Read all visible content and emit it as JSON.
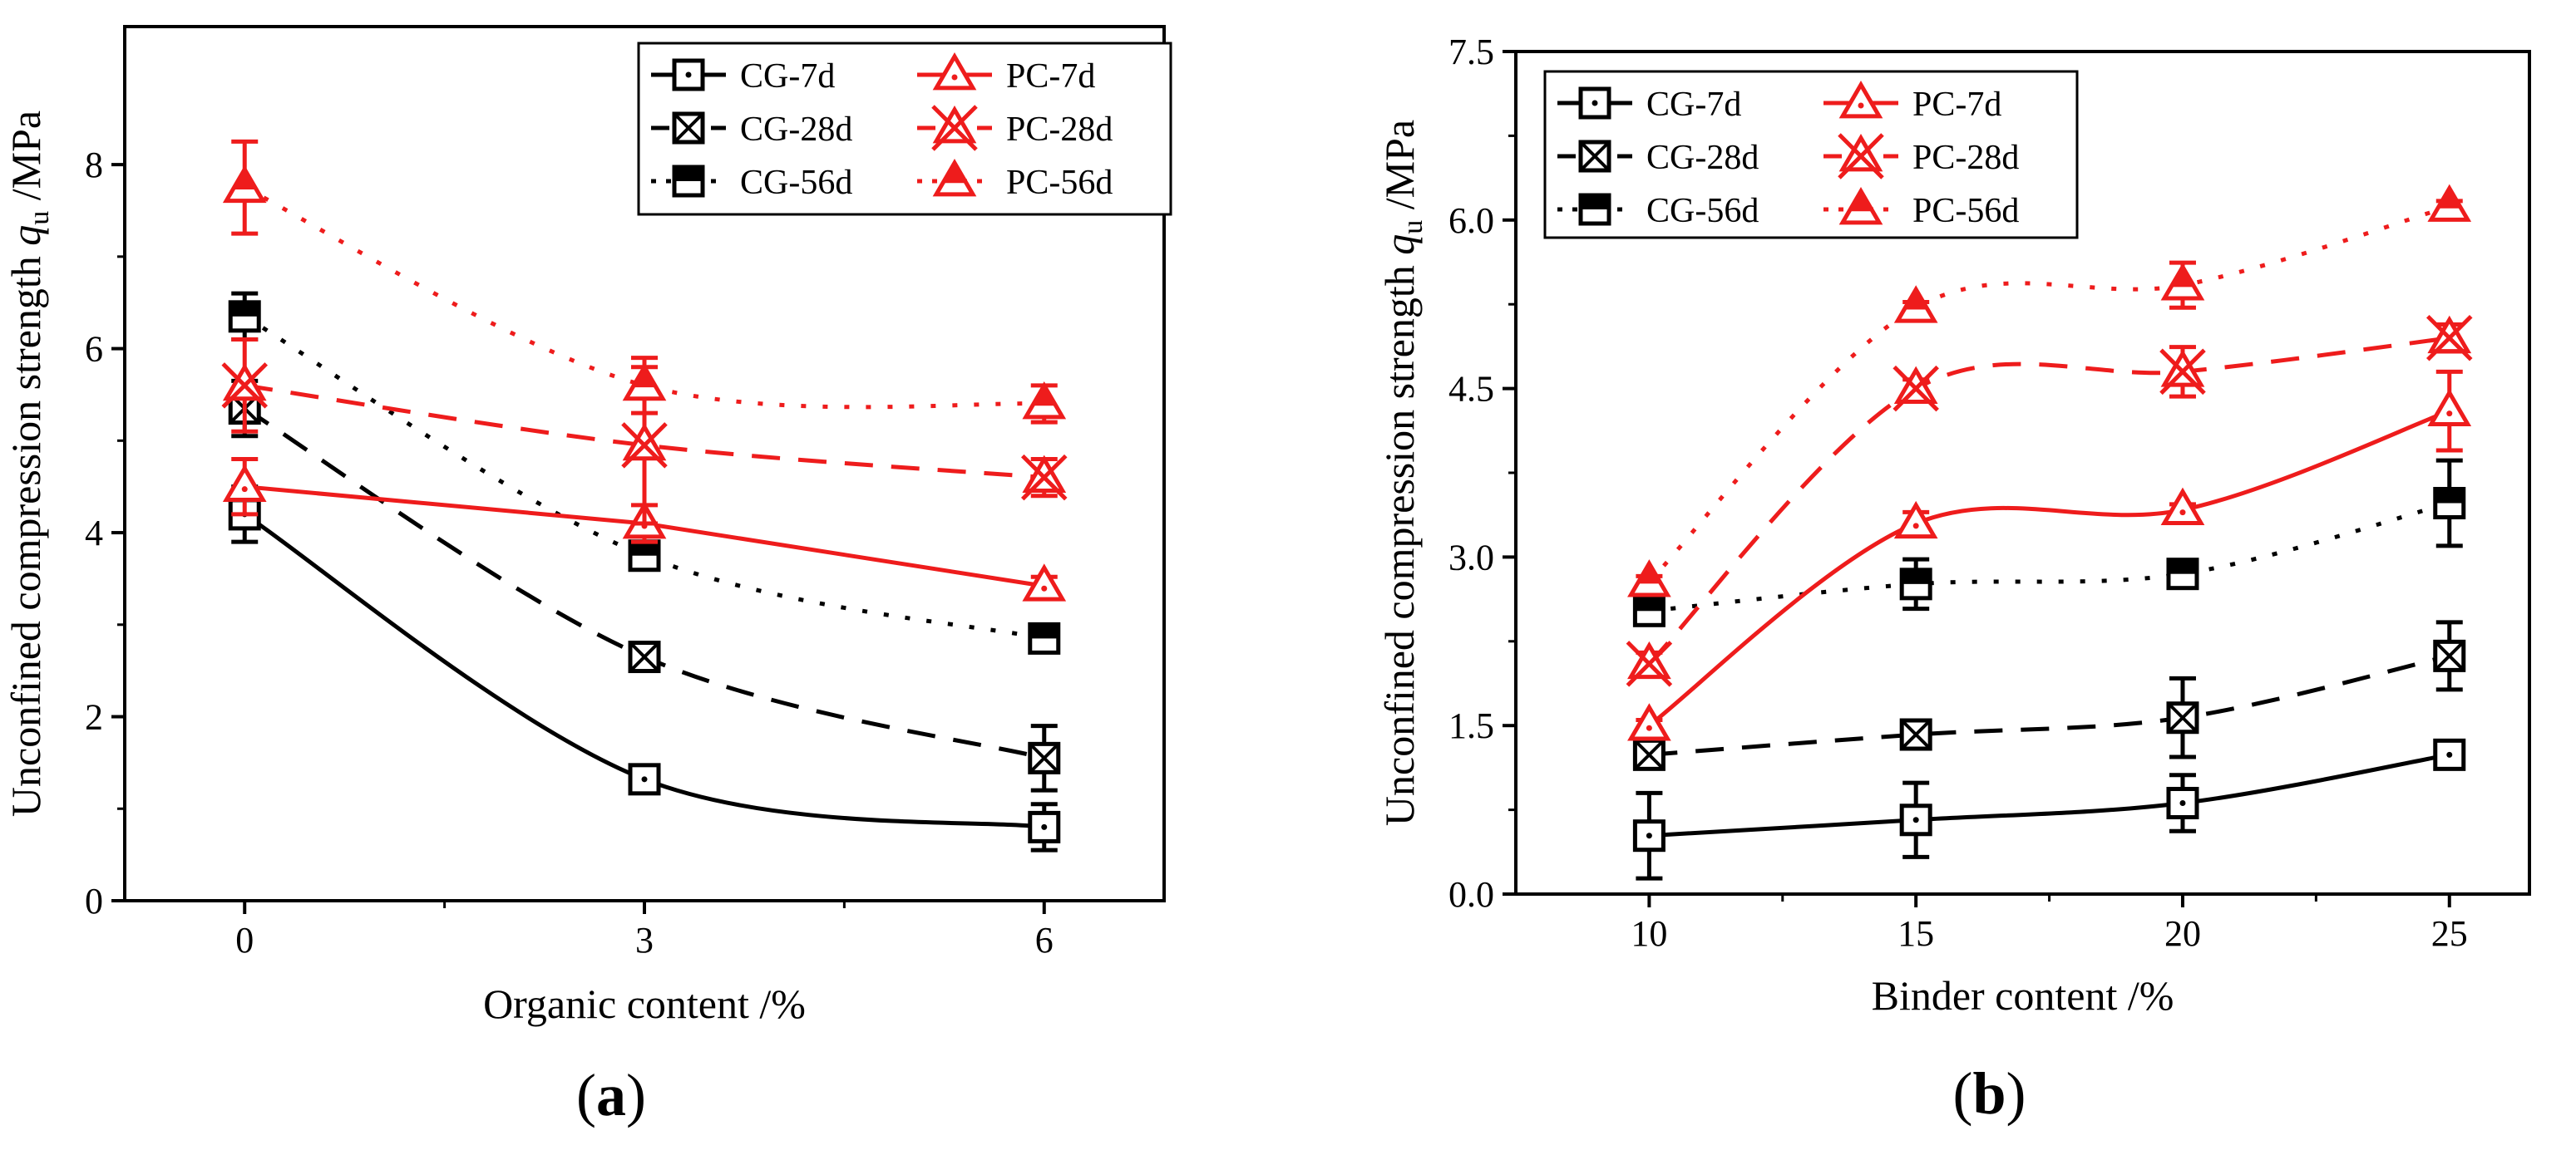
{
  "colors": {
    "black": "#000000",
    "red": "#ee1c1c"
  },
  "chart_data": [
    {
      "panel_label_open": "(",
      "panel_label_letter": "a",
      "panel_label_close": ")",
      "type": "line",
      "xlabel": "Organic content /%",
      "ylabel_main": "Unconfined compression strength ",
      "ylabel_var": "q",
      "ylabel_sub": "u",
      "ylabel_unit": " /MPa",
      "xlim": [
        -0.9,
        6.9
      ],
      "ylim": [
        0,
        9.5
      ],
      "x_ticks": [
        0,
        3,
        6
      ],
      "x_tick_labels": [
        "0",
        "3",
        "6"
      ],
      "y_ticks": [
        0,
        2,
        4,
        6,
        8
      ],
      "y_tick_labels": [
        "0",
        "2",
        "4",
        "6",
        "8"
      ],
      "legend_position": "top-right",
      "series": [
        {
          "name": "CG-7d",
          "x": [
            0,
            3,
            6
          ],
          "values": [
            4.2,
            1.32,
            0.8
          ],
          "errors": [
            0.3,
            0.05,
            0.25
          ],
          "color": "#000000",
          "marker": "square-dot",
          "line": "solid"
        },
        {
          "name": "CG-28d",
          "x": [
            0,
            3,
            6
          ],
          "values": [
            5.35,
            2.65,
            1.55
          ],
          "errors": [
            0.3,
            0.1,
            0.35
          ],
          "color": "#000000",
          "marker": "square-x",
          "line": "dash"
        },
        {
          "name": "CG-56d",
          "x": [
            0,
            3,
            6
          ],
          "values": [
            6.35,
            3.75,
            2.85
          ],
          "errors": [
            0.25,
            0.15,
            0.1
          ],
          "color": "#000000",
          "marker": "square-half",
          "line": "dot"
        },
        {
          "name": "PC-7d",
          "x": [
            0,
            3,
            6
          ],
          "values": [
            4.5,
            4.1,
            3.42
          ],
          "errors": [
            0.3,
            0.2,
            0.1
          ],
          "color": "#ee1c1c",
          "marker": "triangle-open",
          "line": "solid"
        },
        {
          "name": "PC-28d",
          "x": [
            0,
            3,
            6
          ],
          "values": [
            5.6,
            4.95,
            4.6
          ],
          "errors": [
            0.5,
            0.85,
            0.2
          ],
          "color": "#ee1c1c",
          "marker": "triangle-x",
          "line": "dash"
        },
        {
          "name": "PC-56d",
          "x": [
            0,
            3,
            6
          ],
          "values": [
            7.75,
            5.6,
            5.4
          ],
          "errors": [
            0.5,
            0.3,
            0.2
          ],
          "color": "#ee1c1c",
          "marker": "triangle-half",
          "line": "dot"
        }
      ]
    },
    {
      "panel_label_open": "(",
      "panel_label_letter": "b",
      "panel_label_close": ")",
      "type": "line",
      "xlabel": "Binder content /%",
      "ylabel_main": "Unconfined compression strength ",
      "ylabel_var": "q",
      "ylabel_sub": "u",
      "ylabel_unit": " /MPa",
      "xlim": [
        7.5,
        26.5
      ],
      "ylim": [
        0,
        7.5
      ],
      "x_ticks": [
        10,
        15,
        20,
        25
      ],
      "x_tick_labels": [
        "10",
        "15",
        "20",
        "25"
      ],
      "y_ticks": [
        0,
        1.5,
        3,
        4.5,
        6,
        7.5
      ],
      "y_tick_labels": [
        "0.0",
        "1.5",
        "3.0",
        "4.5",
        "6.0",
        "7.5"
      ],
      "legend_position": "top-left",
      "series": [
        {
          "name": "CG-7d",
          "x": [
            10,
            15,
            20,
            25
          ],
          "values": [
            0.52,
            0.66,
            0.81,
            1.24
          ],
          "errors": [
            0.38,
            0.33,
            0.25,
            0.08
          ],
          "color": "#000000",
          "marker": "square-dot",
          "line": "solid"
        },
        {
          "name": "CG-28d",
          "x": [
            10,
            15,
            20,
            25
          ],
          "values": [
            1.24,
            1.42,
            1.57,
            2.12
          ],
          "errors": [
            0.08,
            0.1,
            0.35,
            0.3
          ],
          "color": "#000000",
          "marker": "square-x",
          "line": "dash"
        },
        {
          "name": "CG-56d",
          "x": [
            10,
            15,
            20,
            25
          ],
          "values": [
            2.52,
            2.76,
            2.85,
            3.48
          ],
          "errors": [
            0.1,
            0.22,
            0.05,
            0.38
          ],
          "color": "#000000",
          "marker": "square-half",
          "line": "dot"
        },
        {
          "name": "PC-7d",
          "x": [
            10,
            15,
            20,
            25
          ],
          "values": [
            1.5,
            3.3,
            3.42,
            4.3
          ],
          "errors": [
            0.05,
            0.1,
            0.05,
            0.35
          ],
          "color": "#ee1c1c",
          "marker": "triangle-open",
          "line": "solid"
        },
        {
          "name": "PC-28d",
          "x": [
            10,
            15,
            20,
            25
          ],
          "values": [
            2.05,
            4.5,
            4.65,
            4.95
          ],
          "errors": [
            0.1,
            0.08,
            0.22,
            0.12
          ],
          "color": "#ee1c1c",
          "marker": "triangle-x",
          "line": "dash"
        },
        {
          "name": "PC-56d",
          "x": [
            10,
            15,
            20,
            25
          ],
          "values": [
            2.78,
            5.22,
            5.42,
            6.12
          ],
          "errors": [
            0.05,
            0.05,
            0.2,
            0.05
          ],
          "color": "#ee1c1c",
          "marker": "triangle-half",
          "line": "dot"
        }
      ]
    }
  ]
}
